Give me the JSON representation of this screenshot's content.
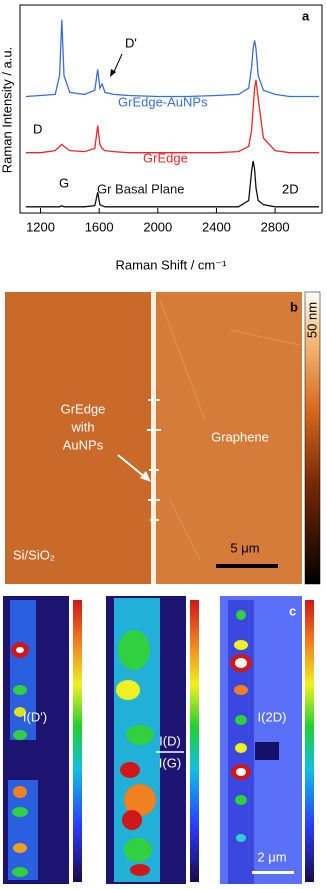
{
  "chart_data": {
    "type": "line",
    "xlabel": "Raman Shift / cm⁻¹",
    "ylabel": "Raman Intensity / a.u.",
    "panel_label": "a",
    "annotations": [
      "D'",
      "D",
      "G",
      "2D"
    ],
    "xlim": [
      1060,
      3120
    ],
    "ylim": [
      0,
      100
    ],
    "xticks": [
      1200,
      1600,
      2000,
      2400,
      2800
    ],
    "x": [
      1100,
      1200,
      1300,
      1330,
      1345,
      1360,
      1400,
      1500,
      1570,
      1590,
      1605,
      1620,
      1640,
      1700,
      1800,
      2000,
      2200,
      2400,
      2550,
      2620,
      2640,
      2650,
      2660,
      2670,
      2685,
      2720,
      2800,
      2900,
      3000,
      3100
    ],
    "series": [
      {
        "name": "GrEdge-AuNPs",
        "color": "#3b6fd4",
        "values": [
          56,
          56.5,
          57,
          66,
          93,
          66,
          58,
          57,
          59,
          69,
          60,
          62,
          58,
          57,
          56.5,
          56,
          56,
          56.5,
          57,
          60,
          70,
          79,
          83,
          79,
          66,
          59,
          57,
          56,
          56,
          56
        ]
      },
      {
        "name": "GrEdge",
        "color": "#e8282a",
        "values": [
          29,
          29,
          30,
          32,
          33,
          32,
          30,
          29.5,
          31,
          42,
          33,
          31,
          30,
          29.5,
          29,
          29,
          29,
          29,
          29.5,
          32,
          40,
          50,
          60,
          64,
          55,
          36,
          30,
          29,
          29,
          29
        ]
      },
      {
        "name": "Gr Basal Plane",
        "color": "#111111",
        "values": [
          3,
          3,
          3,
          3,
          3.5,
          3,
          3,
          3,
          3.5,
          10,
          4,
          3.5,
          3,
          3,
          3,
          3,
          3,
          3,
          3,
          6,
          20,
          25,
          21,
          12,
          6,
          4,
          3,
          3,
          3,
          3
        ]
      }
    ]
  },
  "panel_b": {
    "label": "b",
    "colorbar_label": "50 nm",
    "edge_label": [
      "GrEdge",
      "with",
      "AuNPs"
    ],
    "region_label": "Graphene",
    "substrate_label": "Si/SiO₂",
    "scale_bar": "5 μm"
  },
  "panel_c": {
    "label": "c",
    "map_1": "I(D')",
    "map_2_numerator": "I(D)",
    "map_2_denominator": "I(G)",
    "map_3": "I(2D)",
    "scale_bar": "2 μm"
  }
}
